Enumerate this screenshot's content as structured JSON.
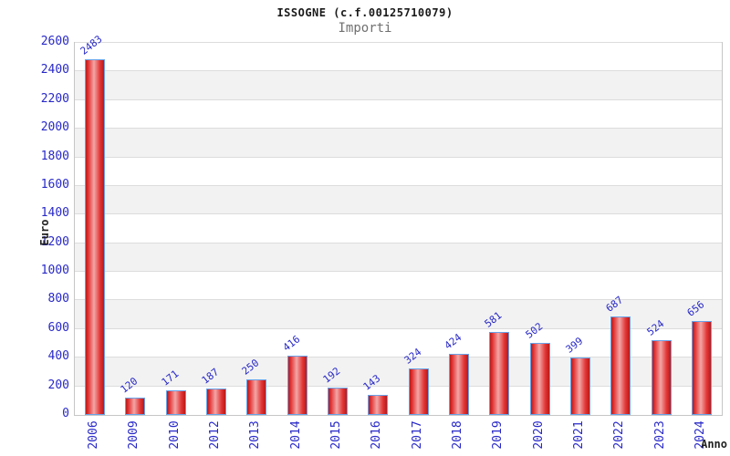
{
  "header": {
    "title": "ISSOGNE (c.f.00125710079)",
    "subtitle": "Importi"
  },
  "chart_data": {
    "type": "bar",
    "title": "ISSOGNE (c.f.00125710079)",
    "subtitle": "Importi",
    "categories": [
      "2006",
      "2009",
      "2010",
      "2012",
      "2013",
      "2014",
      "2015",
      "2016",
      "2017",
      "2018",
      "2019",
      "2020",
      "2021",
      "2022",
      "2023",
      "2024"
    ],
    "values": [
      2483,
      120,
      171,
      187,
      250,
      416,
      192,
      143,
      324,
      424,
      581,
      502,
      399,
      687,
      524,
      656
    ],
    "xlabel": "Anno",
    "ylabel": "Euro",
    "ylim": [
      0,
      2600
    ],
    "ytick_step": 200,
    "grid": true,
    "legend": false,
    "bands_alternating": true,
    "value_labels_rotated": true,
    "category_labels_rotated": true
  },
  "colors": {
    "bar_dark": "#b81a1a",
    "bar_main": "#e23535",
    "bar_light": "#f3a6a6",
    "bar_border": "#68a2e8",
    "value_label": "#2828c8",
    "tick_label": "#2828c8",
    "band_gray": "#f2f2f2",
    "grid_line": "#dcdcdc",
    "plot_border": "#c6c6c6",
    "title": "#1a1a1a",
    "subtitle": "#707070",
    "axis_title": "#222222"
  }
}
